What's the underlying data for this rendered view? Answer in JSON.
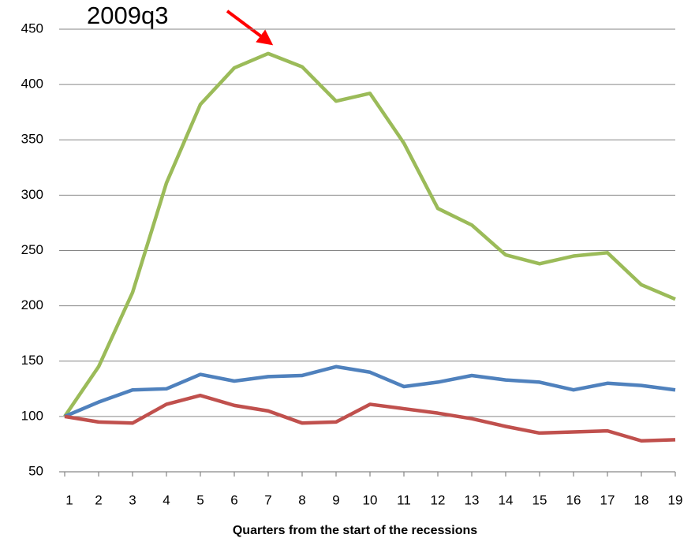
{
  "chart_data": {
    "type": "line",
    "x_label": "Quarters from the start of the recessions",
    "annotation": "2009q3",
    "x": [
      1,
      2,
      3,
      4,
      5,
      6,
      7,
      8,
      9,
      10,
      11,
      12,
      13,
      14,
      15,
      16,
      17,
      18,
      19
    ],
    "xlim": [
      1,
      19
    ],
    "xticks": [
      1,
      2,
      3,
      4,
      5,
      6,
      7,
      8,
      9,
      10,
      11,
      12,
      13,
      14,
      15,
      16,
      17,
      18,
      19
    ],
    "ylim": [
      50,
      450
    ],
    "yticks": [
      50,
      100,
      150,
      200,
      250,
      300,
      350,
      400,
      450
    ],
    "grid": true,
    "series": [
      {
        "color": "#9bbb59",
        "values": [
          100,
          145,
          212,
          311,
          382,
          415,
          428,
          416,
          385,
          392,
          347,
          288,
          273,
          246,
          238,
          245,
          248,
          219,
          206
        ]
      },
      {
        "color": "#4f81bd",
        "values": [
          100,
          113,
          124,
          125,
          138,
          132,
          136,
          137,
          145,
          140,
          127,
          131,
          137,
          133,
          131,
          124,
          130,
          128,
          124
        ]
      },
      {
        "color": "#c0504d",
        "values": [
          100,
          95,
          94,
          111,
          119,
          110,
          105,
          94,
          95,
          111,
          107,
          103,
          98,
          91,
          85,
          86,
          87,
          78,
          79
        ]
      }
    ]
  }
}
